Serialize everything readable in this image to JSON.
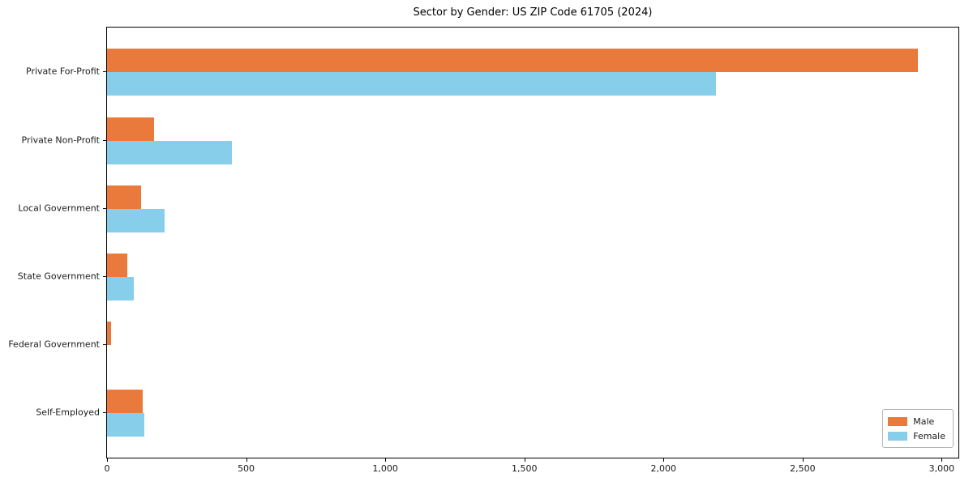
{
  "title": "Sector by Gender: US ZIP Code 61705 (2024)",
  "chart_data": {
    "type": "bar",
    "orientation": "horizontal",
    "title": "Sector by Gender: US ZIP Code 61705 (2024)",
    "xlabel": "",
    "ylabel": "",
    "categories": [
      "Private For-Profit",
      "Private Non-Profit",
      "Local Government",
      "State Government",
      "Federal Government",
      "Self-Employed"
    ],
    "series": [
      {
        "name": "Male",
        "color": "#E97A3C",
        "values": [
          2915,
          170,
          122,
          74,
          15,
          128
        ]
      },
      {
        "name": "Female",
        "color": "#87CEEB",
        "values": [
          2190,
          450,
          206,
          96,
          0,
          134
        ]
      }
    ],
    "xlim": [
      0,
      3060
    ],
    "xticks": [
      0,
      500,
      1000,
      1500,
      2000,
      2500,
      3000
    ],
    "xtick_labels": [
      "0",
      "500",
      "1,000",
      "1,500",
      "2,000",
      "2,500",
      "3,000"
    ],
    "grid": false,
    "legend_position": "lower right",
    "plot_background": "#ffffff",
    "spine_color": "#000000"
  }
}
